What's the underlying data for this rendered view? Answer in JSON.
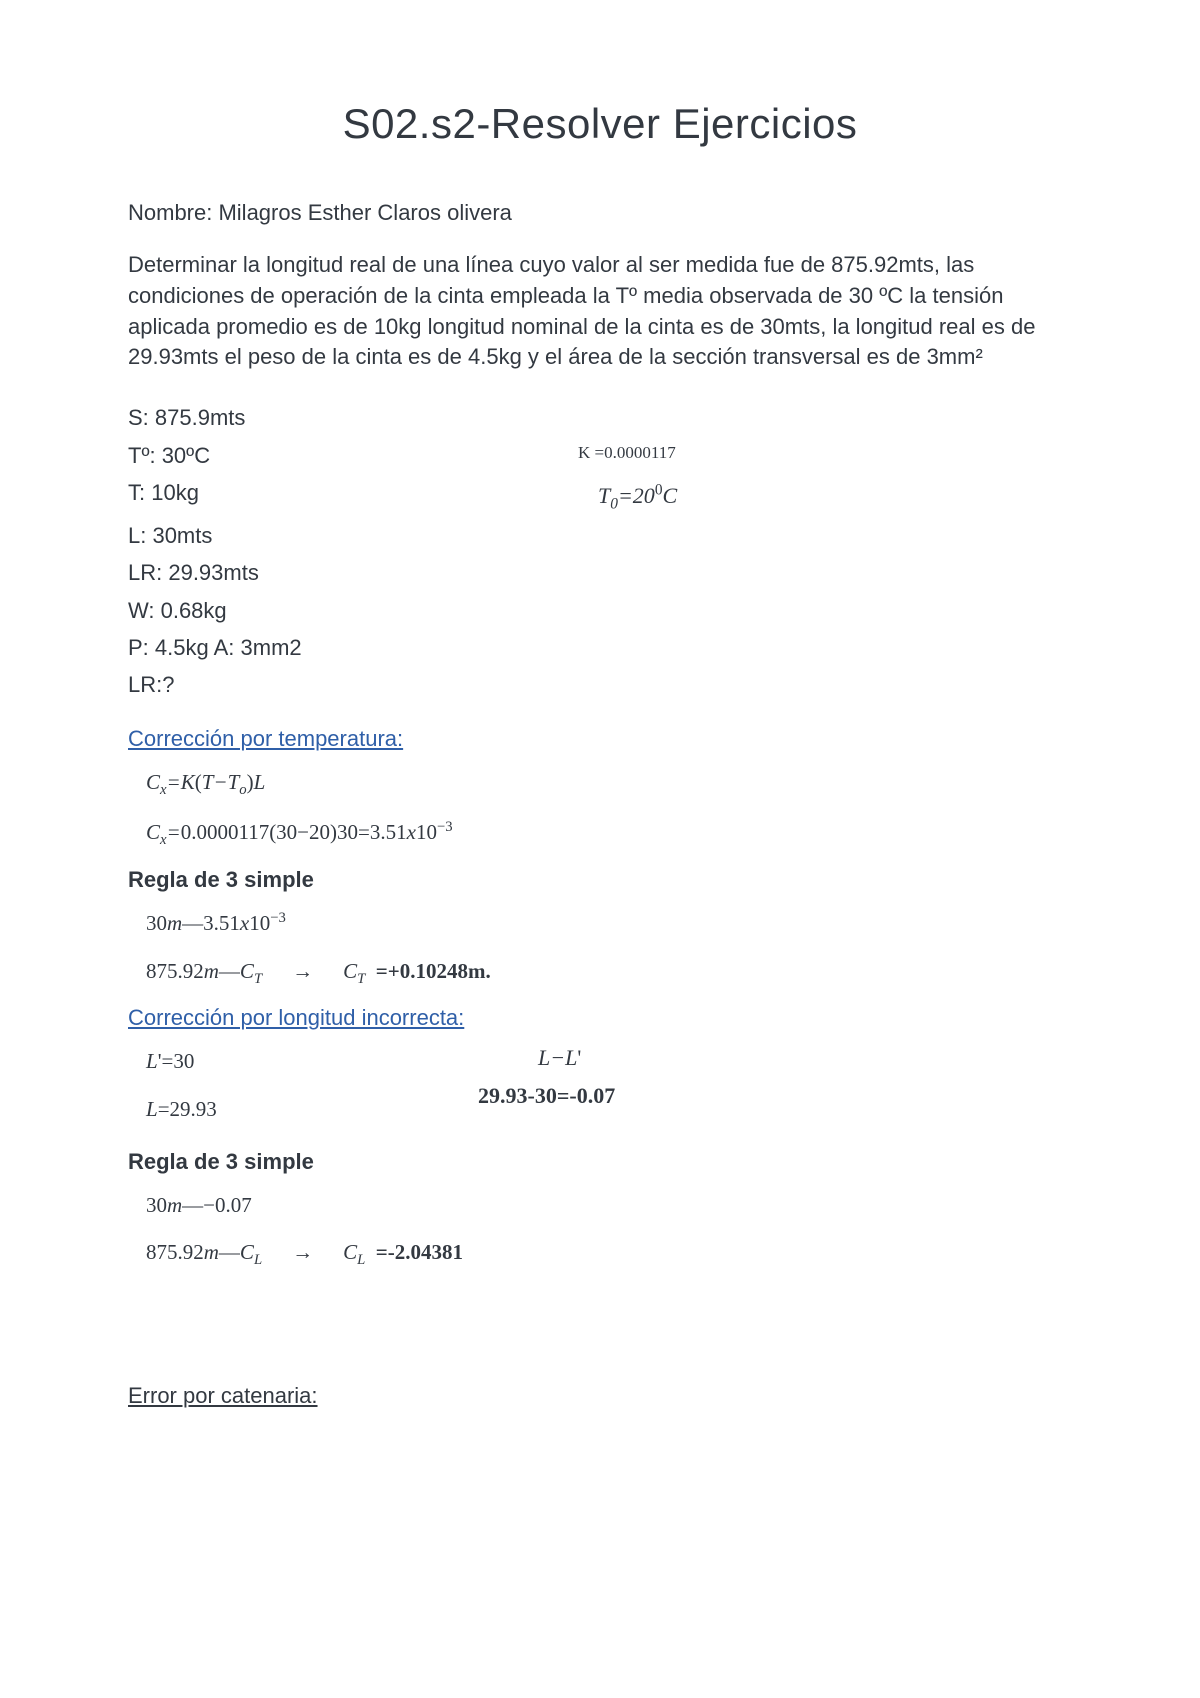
{
  "title": "S02.s2-Resolver Ejercicios",
  "name_label": "Nombre: Milagros Esther Claros olivera",
  "problem": "Determinar la longitud real de una línea cuyo valor al ser medida fue de 875.92mts, las condiciones de operación de la cinta empleada la Tº media observada de 30 ºC la tensión aplicada promedio es de 10kg longitud nominal de la cinta es de 30mts, la longitud real es de 29.93mts el peso de la cinta es de 4.5kg y el área de la sección transversal es de 3mm²",
  "data": {
    "s": "S: 875.9mts",
    "temp": "Tº: 30ºC",
    "t": "T: 10kg",
    "l": "L: 30mts",
    "lr": "LR: 29.93mts",
    "w": "W: 0.68kg",
    "pa": "P: 4.5kg A: 3mm2",
    "lrq": "LR:?",
    "k": "K =0.0000117",
    "t0": "T₀=20°C"
  },
  "sections": {
    "temp_title": "Corrección por temperatura:",
    "temp_formula1": "Cₓ=K(T−Tₒ)L",
    "temp_formula2": "Cₓ=0.0000117(30−20)30=3.51x10⁻³",
    "regla": "Regla de 3 simple",
    "temp_r1": "30m—3.51x10⁻³",
    "temp_r2_left": "875.92m—C_T",
    "temp_r2_result": "C_T  =+0.10248m.",
    "long_title": "Corrección por longitud incorrecta:",
    "long_lp": "L'=30",
    "long_l": "L=29.93",
    "long_diff": "L−L'",
    "long_calc": "29.93-30=-0.07",
    "long_r1": "30m—−0.07",
    "long_r2_left": "875.92m—C_L",
    "long_r2_result": "C_L  =-2.04381",
    "catenaria": "Error por catenaria:"
  }
}
